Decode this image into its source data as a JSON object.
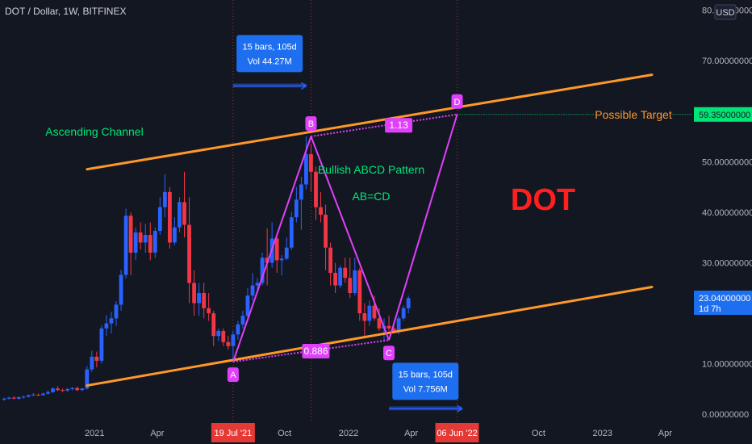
{
  "header": {
    "title": "DOT / Dollar, 1W, BITFINEX",
    "currency": "USD"
  },
  "colors": {
    "background": "#131722",
    "up": "#2962ff",
    "down": "#f23645",
    "channel": "#ff9829",
    "pattern": "#e040fb",
    "green_text": "#00e676",
    "red_text": "#ff1f1f",
    "info_box": "#1e6ff0",
    "axis_text": "#b2b5be"
  },
  "chart_data": {
    "type": "candlestick",
    "symbol": "DOT",
    "quote": "Dollar",
    "interval": "1W",
    "exchange": "BITFINEX",
    "y_axis": {
      "ticks": [
        0,
        10,
        20,
        30,
        40,
        50,
        60,
        70,
        80
      ],
      "tick_labels": [
        "0.00000000",
        "10.00000000",
        "",
        "30.00000000",
        "40.00000000",
        "50.00000000",
        "",
        "70.00000000",
        "80.00000000"
      ],
      "ylim": [
        -1.4,
        82
      ]
    },
    "x_axis": {
      "tick_labels": [
        "2021",
        "Apr",
        "Oct",
        "2022",
        "Apr",
        "Oct",
        "2023",
        "Apr"
      ],
      "tick_dates": [
        "2021-01-01",
        "2021-04-01",
        "2021-10-01",
        "2022-01-01",
        "2022-04-01",
        "2022-10-01",
        "2023-01-01",
        "2023-04-01"
      ],
      "xlim": [
        "2020-08-18",
        "2023-05-10"
      ],
      "highlight_labels": [
        {
          "label": "19 Jul '21",
          "date": "2021-07-19"
        },
        {
          "label": "06 Jun '22",
          "date": "2022-06-06"
        }
      ]
    },
    "price_labels": [
      {
        "value": 59.35,
        "label": "59.35000000",
        "color": "#00e676"
      },
      {
        "value": 23.04,
        "label": "23.04000000",
        "sub": "1d 7h",
        "color": "#1e6ff0"
      }
    ],
    "candles": [
      {
        "t": "2020-08-24",
        "o": 2.9,
        "h": 3.3,
        "l": 2.7,
        "c": 3.1
      },
      {
        "t": "2020-08-31",
        "o": 3.1,
        "h": 3.5,
        "l": 2.9,
        "c": 3.3
      },
      {
        "t": "2020-09-07",
        "o": 3.3,
        "h": 3.6,
        "l": 3.0,
        "c": 3.1
      },
      {
        "t": "2020-09-14",
        "o": 3.1,
        "h": 3.5,
        "l": 2.9,
        "c": 3.4
      },
      {
        "t": "2020-09-21",
        "o": 3.4,
        "h": 3.7,
        "l": 3.1,
        "c": 3.5
      },
      {
        "t": "2020-09-28",
        "o": 3.5,
        "h": 3.9,
        "l": 3.3,
        "c": 3.8
      },
      {
        "t": "2020-10-05",
        "o": 3.8,
        "h": 4.2,
        "l": 3.6,
        "c": 3.9
      },
      {
        "t": "2020-10-12",
        "o": 3.9,
        "h": 4.1,
        "l": 3.6,
        "c": 3.8
      },
      {
        "t": "2020-10-19",
        "o": 3.8,
        "h": 4.3,
        "l": 3.7,
        "c": 4.1
      },
      {
        "t": "2020-10-26",
        "o": 4.1,
        "h": 4.7,
        "l": 3.9,
        "c": 4.4
      },
      {
        "t": "2020-11-02",
        "o": 4.4,
        "h": 5.4,
        "l": 4.2,
        "c": 5.1
      },
      {
        "t": "2020-11-09",
        "o": 5.1,
        "h": 5.6,
        "l": 4.6,
        "c": 4.8
      },
      {
        "t": "2020-11-16",
        "o": 4.8,
        "h": 5.1,
        "l": 4.4,
        "c": 4.7
      },
      {
        "t": "2020-11-23",
        "o": 4.7,
        "h": 5.2,
        "l": 4.4,
        "c": 5.0
      },
      {
        "t": "2020-11-30",
        "o": 5.0,
        "h": 5.4,
        "l": 4.7,
        "c": 5.2
      },
      {
        "t": "2020-12-07",
        "o": 5.2,
        "h": 5.5,
        "l": 4.6,
        "c": 4.8
      },
      {
        "t": "2020-12-14",
        "o": 4.8,
        "h": 5.2,
        "l": 4.6,
        "c": 5.1
      },
      {
        "t": "2020-12-21",
        "o": 5.1,
        "h": 9.6,
        "l": 4.9,
        "c": 8.9
      },
      {
        "t": "2020-12-28",
        "o": 8.9,
        "h": 12.6,
        "l": 8.4,
        "c": 11.4
      },
      {
        "t": "2021-01-04",
        "o": 11.4,
        "h": 12.4,
        "l": 9.3,
        "c": 10.6
      },
      {
        "t": "2021-01-11",
        "o": 10.6,
        "h": 17.6,
        "l": 10.1,
        "c": 17.0
      },
      {
        "t": "2021-01-18",
        "o": 17.0,
        "h": 19.6,
        "l": 15.5,
        "c": 18.0
      },
      {
        "t": "2021-01-25",
        "o": 18.0,
        "h": 20.3,
        "l": 16.0,
        "c": 19.0
      },
      {
        "t": "2021-02-01",
        "o": 19.0,
        "h": 22.4,
        "l": 17.5,
        "c": 21.7
      },
      {
        "t": "2021-02-08",
        "o": 21.7,
        "h": 28.6,
        "l": 20.5,
        "c": 27.6
      },
      {
        "t": "2021-02-15",
        "o": 27.6,
        "h": 40.7,
        "l": 26.9,
        "c": 39.3
      },
      {
        "t": "2021-02-22",
        "o": 39.3,
        "h": 40.0,
        "l": 27.5,
        "c": 32.0
      },
      {
        "t": "2021-03-01",
        "o": 32.0,
        "h": 37.0,
        "l": 30.5,
        "c": 36.0
      },
      {
        "t": "2021-03-08",
        "o": 36.0,
        "h": 38.0,
        "l": 32.6,
        "c": 34.0
      },
      {
        "t": "2021-03-15",
        "o": 34.0,
        "h": 37.7,
        "l": 32.0,
        "c": 35.5
      },
      {
        "t": "2021-03-22",
        "o": 35.5,
        "h": 38.0,
        "l": 30.5,
        "c": 32.0
      },
      {
        "t": "2021-03-29",
        "o": 32.0,
        "h": 37.0,
        "l": 31.0,
        "c": 36.3
      },
      {
        "t": "2021-04-05",
        "o": 36.3,
        "h": 43.0,
        "l": 35.5,
        "c": 41.0
      },
      {
        "t": "2021-04-12",
        "o": 41.0,
        "h": 47.5,
        "l": 39.0,
        "c": 44.0
      },
      {
        "t": "2021-04-19",
        "o": 44.0,
        "h": 45.0,
        "l": 32.8,
        "c": 34.0
      },
      {
        "t": "2021-04-26",
        "o": 34.0,
        "h": 39.0,
        "l": 33.5,
        "c": 37.0
      },
      {
        "t": "2021-05-03",
        "o": 37.0,
        "h": 43.0,
        "l": 36.0,
        "c": 42.0
      },
      {
        "t": "2021-05-10",
        "o": 42.0,
        "h": 48.0,
        "l": 35.0,
        "c": 37.5
      },
      {
        "t": "2021-05-17",
        "o": 37.5,
        "h": 43.0,
        "l": 22.0,
        "c": 26.0
      },
      {
        "t": "2021-05-24",
        "o": 26.0,
        "h": 28.5,
        "l": 19.5,
        "c": 22.0
      },
      {
        "t": "2021-05-31",
        "o": 22.0,
        "h": 26.0,
        "l": 19.5,
        "c": 24.0
      },
      {
        "t": "2021-06-07",
        "o": 24.0,
        "h": 26.0,
        "l": 19.0,
        "c": 21.0
      },
      {
        "t": "2021-06-14",
        "o": 21.0,
        "h": 24.0,
        "l": 18.5,
        "c": 20.0
      },
      {
        "t": "2021-06-21",
        "o": 20.0,
        "h": 20.5,
        "l": 13.5,
        "c": 15.5
      },
      {
        "t": "2021-06-28",
        "o": 15.5,
        "h": 17.0,
        "l": 14.5,
        "c": 16.5
      },
      {
        "t": "2021-07-05",
        "o": 16.5,
        "h": 17.0,
        "l": 13.5,
        "c": 14.3
      },
      {
        "t": "2021-07-12",
        "o": 14.3,
        "h": 15.5,
        "l": 12.8,
        "c": 13.5
      },
      {
        "t": "2021-07-19",
        "o": 13.5,
        "h": 16.5,
        "l": 10.4,
        "c": 15.8
      },
      {
        "t": "2021-07-26",
        "o": 15.8,
        "h": 18.5,
        "l": 14.8,
        "c": 17.8
      },
      {
        "t": "2021-08-02",
        "o": 17.8,
        "h": 20.5,
        "l": 17.0,
        "c": 19.5
      },
      {
        "t": "2021-08-09",
        "o": 19.5,
        "h": 25.0,
        "l": 19.0,
        "c": 23.5
      },
      {
        "t": "2021-08-16",
        "o": 23.5,
        "h": 28.0,
        "l": 22.5,
        "c": 25.5
      },
      {
        "t": "2021-08-23",
        "o": 25.5,
        "h": 27.0,
        "l": 24.0,
        "c": 26.0
      },
      {
        "t": "2021-08-30",
        "o": 26.0,
        "h": 32.0,
        "l": 25.5,
        "c": 31.0
      },
      {
        "t": "2021-09-06",
        "o": 31.0,
        "h": 36.8,
        "l": 25.5,
        "c": 30.0
      },
      {
        "t": "2021-09-13",
        "o": 30.0,
        "h": 38.0,
        "l": 29.0,
        "c": 34.8
      },
      {
        "t": "2021-09-20",
        "o": 34.8,
        "h": 35.0,
        "l": 28.0,
        "c": 30.5
      },
      {
        "t": "2021-09-27",
        "o": 30.5,
        "h": 31.5,
        "l": 27.5,
        "c": 30.8
      },
      {
        "t": "2021-10-04",
        "o": 30.8,
        "h": 35.0,
        "l": 30.5,
        "c": 33.0
      },
      {
        "t": "2021-10-11",
        "o": 33.0,
        "h": 40.0,
        "l": 32.5,
        "c": 39.0
      },
      {
        "t": "2021-10-18",
        "o": 39.0,
        "h": 45.0,
        "l": 38.0,
        "c": 42.5
      },
      {
        "t": "2021-10-25",
        "o": 42.5,
        "h": 47.0,
        "l": 36.5,
        "c": 45.5
      },
      {
        "t": "2021-11-01",
        "o": 45.5,
        "h": 55.0,
        "l": 44.5,
        "c": 51.5
      },
      {
        "t": "2021-11-08",
        "o": 51.5,
        "h": 53.5,
        "l": 44.0,
        "c": 48.0
      },
      {
        "t": "2021-11-15",
        "o": 48.0,
        "h": 49.0,
        "l": 38.5,
        "c": 41.0
      },
      {
        "t": "2021-11-22",
        "o": 41.0,
        "h": 44.0,
        "l": 38.0,
        "c": 39.5
      },
      {
        "t": "2021-11-29",
        "o": 39.5,
        "h": 41.5,
        "l": 28.5,
        "c": 33.0
      },
      {
        "t": "2021-12-06",
        "o": 33.0,
        "h": 34.0,
        "l": 25.5,
        "c": 28.0
      },
      {
        "t": "2021-12-13",
        "o": 28.0,
        "h": 30.0,
        "l": 24.0,
        "c": 25.5
      },
      {
        "t": "2021-12-20",
        "o": 25.5,
        "h": 29.5,
        "l": 25.0,
        "c": 29.0
      },
      {
        "t": "2021-12-27",
        "o": 29.0,
        "h": 31.0,
        "l": 26.0,
        "c": 27.0
      },
      {
        "t": "2022-01-03",
        "o": 27.0,
        "h": 31.0,
        "l": 23.0,
        "c": 24.0
      },
      {
        "t": "2022-01-10",
        "o": 24.0,
        "h": 31.0,
        "l": 23.5,
        "c": 28.5
      },
      {
        "t": "2022-01-17",
        "o": 28.5,
        "h": 29.0,
        "l": 18.5,
        "c": 20.0
      },
      {
        "t": "2022-01-24",
        "o": 20.0,
        "h": 22.0,
        "l": 15.0,
        "c": 18.5
      },
      {
        "t": "2022-01-31",
        "o": 18.5,
        "h": 22.5,
        "l": 17.5,
        "c": 21.5
      },
      {
        "t": "2022-02-07",
        "o": 21.5,
        "h": 23.5,
        "l": 18.5,
        "c": 19.0
      },
      {
        "t": "2022-02-14",
        "o": 19.0,
        "h": 21.0,
        "l": 16.5,
        "c": 17.0
      },
      {
        "t": "2022-02-21",
        "o": 17.0,
        "h": 19.0,
        "l": 14.5,
        "c": 17.5
      },
      {
        "t": "2022-02-28",
        "o": 17.5,
        "h": 19.5,
        "l": 16.5,
        "c": 17.0
      },
      {
        "t": "2022-03-07",
        "o": 17.0,
        "h": 18.0,
        "l": 16.0,
        "c": 16.5
      },
      {
        "t": "2022-03-14",
        "o": 16.5,
        "h": 19.5,
        "l": 15.8,
        "c": 19.0
      },
      {
        "t": "2022-03-21",
        "o": 19.0,
        "h": 21.5,
        "l": 18.5,
        "c": 21.0
      },
      {
        "t": "2022-03-28",
        "o": 21.0,
        "h": 23.5,
        "l": 20.0,
        "c": 23.0
      }
    ],
    "channel": [
      {
        "name": "upper",
        "points": [
          {
            "x": "2020-12-21",
            "y": 48.5
          },
          {
            "x": "2023-03-13",
            "y": 67.2
          }
        ]
      },
      {
        "name": "lower",
        "points": [
          {
            "x": "2020-12-21",
            "y": 5.7
          },
          {
            "x": "2023-03-13",
            "y": 25.2
          }
        ]
      }
    ],
    "pattern_points": [
      {
        "label": "A",
        "x": "2021-07-19",
        "y": 10.4
      },
      {
        "label": "B",
        "x": "2021-11-08",
        "y": 55.0
      },
      {
        "label": "C",
        "x": "2022-02-28",
        "y": 14.7
      },
      {
        "label": "D",
        "x": "2022-06-06",
        "y": 59.35
      }
    ],
    "ratios": [
      {
        "label": "0.886",
        "x": "2021-11-15",
        "y": 12.5
      },
      {
        "label": "1.13",
        "x": "2022-03-14",
        "y": 57.2
      }
    ],
    "measures": [
      {
        "title": "15 bars, 105d",
        "vol": "Vol 44.27M",
        "x1": "2021-07-19",
        "x2": "2021-11-01",
        "y": 65.0
      },
      {
        "title": "15 bars, 105d",
        "vol": "Vol 7.756M",
        "x1": "2022-02-28",
        "x2": "2022-06-13",
        "y": 1.1
      }
    ],
    "annotations": {
      "channel_label": "Ascending Channel",
      "pattern_label": "Bullish ABCD Pattern",
      "equality_label": "AB=CD",
      "symbol_big": "DOT",
      "target_label": "Possible Target",
      "target_value": 59.35
    },
    "vlines": [
      "2021-07-19",
      "2021-11-08",
      "2022-06-06"
    ]
  }
}
